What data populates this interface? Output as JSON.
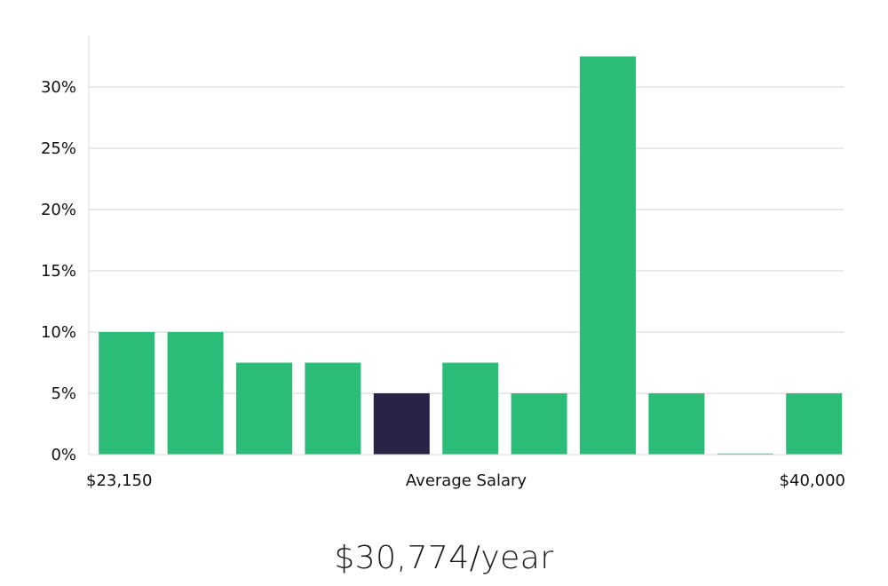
{
  "chart_data": {
    "type": "bar",
    "title": "",
    "xlabel": "Average Salary",
    "ylabel": "",
    "x_min_label": "$23,150",
    "x_max_label": "$40,000",
    "bins": 11,
    "values": [
      10,
      10,
      7.5,
      7.5,
      5,
      7.5,
      5,
      32.5,
      5,
      0,
      5
    ],
    "highlight_index": 4,
    "ylim": [
      0,
      34
    ],
    "yticks": [
      0,
      5,
      10,
      15,
      20,
      25,
      30
    ],
    "ytick_suffix": "%",
    "grid": true,
    "colors": {
      "bar": "#2bbd77",
      "highlight": "#272445",
      "grid": "#e2e2e6",
      "axis": "#d8d8dc"
    }
  },
  "summary": {
    "value": "$30,774/year"
  }
}
